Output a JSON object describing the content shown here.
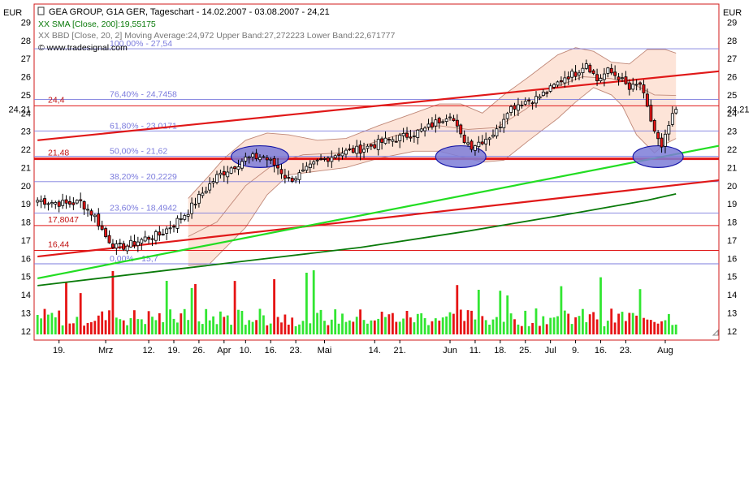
{
  "header": {
    "currency_left": "EUR",
    "currency_right": "EUR",
    "title_line": "GEA GROUP, G1A GER, Tageschart - 14.02.2007 - 03.08.2007 - 24,21",
    "sma_line": "XX SMA [Close, 200]:19,55175",
    "bbd_line": "XX BBD [Close, 20, 2] Moving Average:24,972 Upper Band:27,272223 Lower Band:22,671777",
    "source": "© www.tradesignal.com"
  },
  "colors": {
    "up": "#32e632",
    "down": "#e61414",
    "frame": "#d01818",
    "fib": "#7b7bdd",
    "band_fill": "#fde4d8",
    "band_line": "#c08878",
    "sma200": "#0a7a0a",
    "trend_red": "#e01818",
    "trend_green": "#22dd22",
    "ellipse_fill": "#7c7cd8",
    "ellipse_stroke": "#1818a8"
  },
  "chart_data": {
    "type": "candlestick",
    "y_axis": {
      "min": 11.5,
      "max": 30,
      "ticks": [
        12,
        13,
        14,
        15,
        16,
        17,
        18,
        19,
        20,
        21,
        22,
        23,
        24,
        25,
        26,
        27,
        28,
        29
      ],
      "current_label": "24,21",
      "current_value": 24.21
    },
    "x_labels": [
      {
        "label": "19.",
        "i": 6
      },
      {
        "label": "Mrz",
        "i": 19
      },
      {
        "label": "12.",
        "i": 31
      },
      {
        "label": "19.",
        "i": 38
      },
      {
        "label": "26.",
        "i": 45
      },
      {
        "label": "Apr",
        "i": 52
      },
      {
        "label": "10.",
        "i": 58
      },
      {
        "label": "16.",
        "i": 65
      },
      {
        "label": "23.",
        "i": 72
      },
      {
        "label": "Mai",
        "i": 80
      },
      {
        "label": "14.",
        "i": 94
      },
      {
        "label": "21.",
        "i": 101
      },
      {
        "label": "Jun",
        "i": 115
      },
      {
        "label": "11.",
        "i": 122
      },
      {
        "label": "18.",
        "i": 129
      },
      {
        "label": "25.",
        "i": 136
      },
      {
        "label": "Jul",
        "i": 143
      },
      {
        "label": "9.",
        "i": 150
      },
      {
        "label": "16.",
        "i": 157
      },
      {
        "label": "23.",
        "i": 164
      },
      {
        "label": "Aug",
        "i": 175
      }
    ],
    "fibonacci": [
      {
        "label": "100,00% - 27,54",
        "value": 27.54
      },
      {
        "label": "76,40% - 24,7458",
        "value": 24.7458
      },
      {
        "label": "61,80% - 23,0171",
        "value": 23.0171
      },
      {
        "label": "50,00% - 21,62",
        "value": 21.62
      },
      {
        "label": "38,20% - 20,2229",
        "value": 20.2229
      },
      {
        "label": "23,60% - 18,4942",
        "value": 18.4942
      },
      {
        "label": "0,00% - 15,7",
        "value": 15.7
      }
    ],
    "horizontal_lines": [
      {
        "label": "24,4",
        "value": 24.4,
        "thick": false
      },
      {
        "label": "21,48",
        "value": 21.48,
        "thick": true
      },
      {
        "label": "17,8047",
        "value": 17.8047,
        "thick": false
      },
      {
        "label": "16,44",
        "value": 16.44,
        "thick": false
      }
    ],
    "trend_lines": [
      {
        "color": "trend_red",
        "i1": 0,
        "y1": 22.5,
        "i2": 190,
        "y2": 26.3
      },
      {
        "color": "trend_red",
        "i1": 0,
        "y1": 16.1,
        "i2": 190,
        "y2": 20.3
      },
      {
        "color": "trend_green",
        "i1": 0,
        "y1": 14.9,
        "i2": 190,
        "y2": 22.2
      }
    ],
    "ellipses": [
      {
        "i": 62,
        "y": 21.6,
        "ri": 8,
        "ry": 0.6
      },
      {
        "i": 118,
        "y": 21.6,
        "ri": 7,
        "ry": 0.6
      },
      {
        "i": 173,
        "y": 21.6,
        "ri": 7,
        "ry": 0.6
      }
    ],
    "sma200": [
      {
        "i": 0,
        "y": 14.5
      },
      {
        "i": 30,
        "y": 15.2
      },
      {
        "i": 60,
        "y": 15.9
      },
      {
        "i": 90,
        "y": 16.6
      },
      {
        "i": 120,
        "y": 17.5
      },
      {
        "i": 150,
        "y": 18.5
      },
      {
        "i": 170,
        "y": 19.2
      },
      {
        "i": 178,
        "y": 19.55
      }
    ],
    "bands": {
      "start_i": 42,
      "upper": [
        {
          "i": 42,
          "y": 19.3
        },
        {
          "i": 48,
          "y": 20.6
        },
        {
          "i": 52,
          "y": 21.5
        },
        {
          "i": 58,
          "y": 22.5
        },
        {
          "i": 64,
          "y": 22.9
        },
        {
          "i": 70,
          "y": 22.8
        },
        {
          "i": 78,
          "y": 22.5
        },
        {
          "i": 86,
          "y": 22.6
        },
        {
          "i": 95,
          "y": 23.3
        },
        {
          "i": 105,
          "y": 24.0
        },
        {
          "i": 112,
          "y": 24.5
        },
        {
          "i": 118,
          "y": 24.5
        },
        {
          "i": 124,
          "y": 24.0
        },
        {
          "i": 130,
          "y": 25.0
        },
        {
          "i": 137,
          "y": 26.0
        },
        {
          "i": 145,
          "y": 27.2
        },
        {
          "i": 150,
          "y": 27.6
        },
        {
          "i": 155,
          "y": 27.4
        },
        {
          "i": 160,
          "y": 26.8
        },
        {
          "i": 165,
          "y": 26.7
        },
        {
          "i": 170,
          "y": 27.5
        },
        {
          "i": 175,
          "y": 27.5
        },
        {
          "i": 178,
          "y": 27.3
        }
      ],
      "lower": [
        {
          "i": 42,
          "y": 15.6
        },
        {
          "i": 48,
          "y": 15.7
        },
        {
          "i": 52,
          "y": 16.5
        },
        {
          "i": 58,
          "y": 17.7
        },
        {
          "i": 64,
          "y": 19.5
        },
        {
          "i": 70,
          "y": 20.6
        },
        {
          "i": 78,
          "y": 20.8
        },
        {
          "i": 86,
          "y": 21.0
        },
        {
          "i": 95,
          "y": 21.5
        },
        {
          "i": 105,
          "y": 21.9
        },
        {
          "i": 112,
          "y": 21.9
        },
        {
          "i": 118,
          "y": 21.6
        },
        {
          "i": 124,
          "y": 21.3
        },
        {
          "i": 130,
          "y": 21.4
        },
        {
          "i": 137,
          "y": 22.5
        },
        {
          "i": 145,
          "y": 23.7
        },
        {
          "i": 150,
          "y": 24.6
        },
        {
          "i": 155,
          "y": 25.4
        },
        {
          "i": 160,
          "y": 25.0
        },
        {
          "i": 163,
          "y": 24.4
        },
        {
          "i": 167,
          "y": 22.8
        },
        {
          "i": 172,
          "y": 21.8
        },
        {
          "i": 175,
          "y": 22.3
        },
        {
          "i": 178,
          "y": 22.6
        }
      ],
      "mid": [
        {
          "i": 42,
          "y": 17.2
        },
        {
          "i": 50,
          "y": 18.0
        },
        {
          "i": 58,
          "y": 20.0
        },
        {
          "i": 66,
          "y": 21.2
        },
        {
          "i": 74,
          "y": 21.7
        },
        {
          "i": 84,
          "y": 21.8
        },
        {
          "i": 94,
          "y": 22.4
        },
        {
          "i": 104,
          "y": 23.0
        },
        {
          "i": 112,
          "y": 23.3
        },
        {
          "i": 120,
          "y": 23.1
        },
        {
          "i": 128,
          "y": 23.2
        },
        {
          "i": 136,
          "y": 24.2
        },
        {
          "i": 144,
          "y": 25.4
        },
        {
          "i": 152,
          "y": 26.0
        },
        {
          "i": 160,
          "y": 25.9
        },
        {
          "i": 166,
          "y": 25.6
        },
        {
          "i": 172,
          "y": 25.0
        },
        {
          "i": 178,
          "y": 24.97
        }
      ]
    },
    "price_keyframes": [
      {
        "i": 0,
        "c": 19.2
      },
      {
        "i": 8,
        "c": 19.0
      },
      {
        "i": 12,
        "c": 19.1
      },
      {
        "i": 16,
        "c": 18.3
      },
      {
        "i": 19,
        "c": 17.2
      },
      {
        "i": 22,
        "c": 16.6
      },
      {
        "i": 25,
        "c": 16.7
      },
      {
        "i": 30,
        "c": 17.1
      },
      {
        "i": 34,
        "c": 17.3
      },
      {
        "i": 38,
        "c": 17.9
      },
      {
        "i": 42,
        "c": 18.6
      },
      {
        "i": 46,
        "c": 19.6
      },
      {
        "i": 50,
        "c": 20.5
      },
      {
        "i": 54,
        "c": 21.0
      },
      {
        "i": 58,
        "c": 21.5
      },
      {
        "i": 63,
        "c": 21.6
      },
      {
        "i": 67,
        "c": 21.0
      },
      {
        "i": 70,
        "c": 20.3
      },
      {
        "i": 74,
        "c": 20.7
      },
      {
        "i": 78,
        "c": 21.3
      },
      {
        "i": 84,
        "c": 21.8
      },
      {
        "i": 90,
        "c": 22.0
      },
      {
        "i": 96,
        "c": 22.4
      },
      {
        "i": 102,
        "c": 22.7
      },
      {
        "i": 108,
        "c": 23.1
      },
      {
        "i": 112,
        "c": 23.6
      },
      {
        "i": 115,
        "c": 24.0
      },
      {
        "i": 118,
        "c": 22.7
      },
      {
        "i": 121,
        "c": 22.2
      },
      {
        "i": 124,
        "c": 22.5
      },
      {
        "i": 128,
        "c": 23.0
      },
      {
        "i": 131,
        "c": 24.2
      },
      {
        "i": 135,
        "c": 24.6
      },
      {
        "i": 139,
        "c": 24.8
      },
      {
        "i": 143,
        "c": 25.3
      },
      {
        "i": 147,
        "c": 26.0
      },
      {
        "i": 150,
        "c": 26.2
      },
      {
        "i": 153,
        "c": 26.8
      },
      {
        "i": 156,
        "c": 25.8
      },
      {
        "i": 159,
        "c": 26.3
      },
      {
        "i": 162,
        "c": 26.0
      },
      {
        "i": 165,
        "c": 25.3
      },
      {
        "i": 168,
        "c": 25.6
      },
      {
        "i": 170,
        "c": 24.2
      },
      {
        "i": 172,
        "c": 23.0
      },
      {
        "i": 174,
        "c": 22.0
      },
      {
        "i": 176,
        "c": 23.3
      },
      {
        "i": 178,
        "c": 24.21
      }
    ],
    "last_index": 178,
    "total_slots": 190
  }
}
